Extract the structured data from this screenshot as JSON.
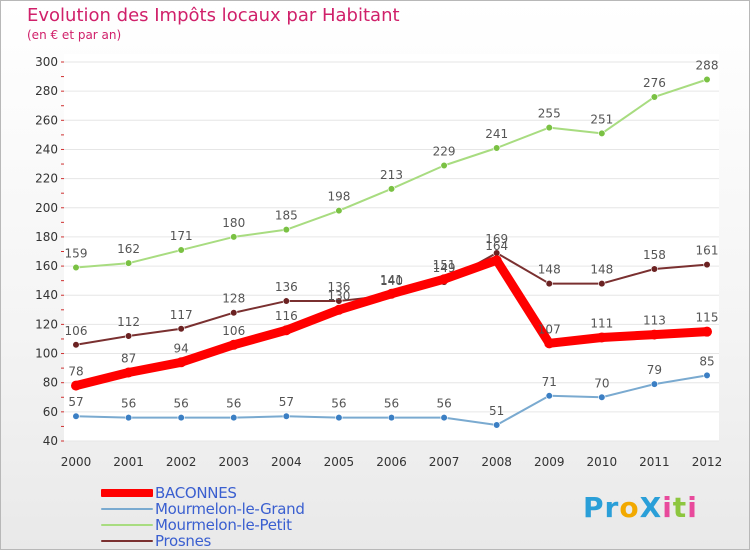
{
  "title": "Evolution des Impôts locaux par Habitant",
  "subtitle": "(en € et par an)",
  "logo": {
    "parts": [
      "P",
      "r",
      "o",
      "X",
      "i",
      "t",
      "i"
    ],
    "colors": [
      "#2a9fd8",
      "#2a9fd8",
      "#f2a900",
      "#2a9fd8",
      "#e84a9c",
      "#8dc63f",
      "#e84a9c"
    ]
  },
  "chart_data": {
    "type": "line",
    "title": "Evolution des Impôts locaux par Habitant",
    "subtitle": "(en € et par an)",
    "categories": [
      "2000",
      "2001",
      "2002",
      "2003",
      "2004",
      "2005",
      "2006",
      "2007",
      "2008",
      "2009",
      "2010",
      "2011",
      "2012"
    ],
    "ylim": [
      40,
      300
    ],
    "yticks": [
      40,
      60,
      80,
      100,
      120,
      140,
      160,
      180,
      200,
      220,
      240,
      260,
      280,
      300
    ],
    "series": [
      {
        "name": "BACONNES",
        "values": [
          78,
          87,
          94,
          106,
          116,
          130,
          141,
          151,
          164,
          107,
          111,
          113,
          115
        ],
        "color": "#ff0000",
        "width": 9,
        "dot": "#ff0000"
      },
      {
        "name": "Mourmelon-le-Grand",
        "values": [
          57,
          56,
          56,
          56,
          57,
          56,
          56,
          56,
          51,
          71,
          70,
          79,
          85
        ],
        "color": "#7aaad0",
        "width": 2,
        "dot": "#3b7fc4"
      },
      {
        "name": "Mourmelon-le-Petit",
        "values": [
          159,
          162,
          171,
          180,
          185,
          198,
          213,
          229,
          241,
          255,
          251,
          276,
          288
        ],
        "color": "#a8dc80",
        "width": 2,
        "dot": "#7ac143"
      },
      {
        "name": "Prosnes",
        "values": [
          106,
          112,
          117,
          128,
          136,
          136,
          140,
          149,
          169,
          148,
          148,
          158,
          161
        ],
        "color": "#7a3030",
        "width": 2,
        "dot": "#6b2222"
      }
    ]
  }
}
